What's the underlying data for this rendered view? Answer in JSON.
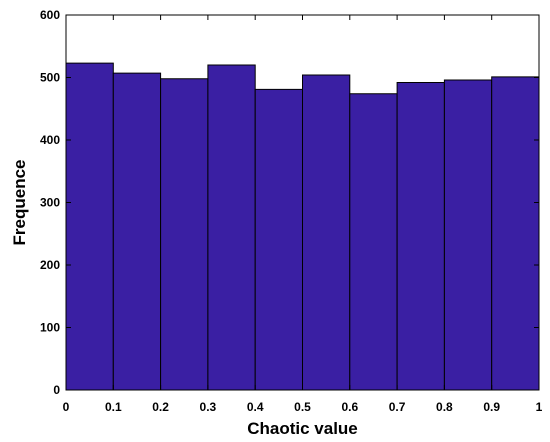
{
  "chart_data": {
    "type": "bar",
    "title": "",
    "xlabel": "Chaotic value",
    "ylabel": "Frequence",
    "xlim": [
      0,
      1
    ],
    "ylim": [
      0,
      600
    ],
    "x_ticks": [
      "0",
      "0.1",
      "0.2",
      "0.3",
      "0.4",
      "0.5",
      "0.6",
      "0.7",
      "0.8",
      "0.9",
      "1"
    ],
    "y_ticks": [
      "0",
      "100",
      "200",
      "300",
      "400",
      "500",
      "600"
    ],
    "bins": [
      {
        "start": 0.0,
        "end": 0.1,
        "value": 523
      },
      {
        "start": 0.1,
        "end": 0.2,
        "value": 507
      },
      {
        "start": 0.2,
        "end": 0.3,
        "value": 498
      },
      {
        "start": 0.3,
        "end": 0.4,
        "value": 520
      },
      {
        "start": 0.4,
        "end": 0.5,
        "value": 481
      },
      {
        "start": 0.5,
        "end": 0.6,
        "value": 504
      },
      {
        "start": 0.6,
        "end": 0.7,
        "value": 474
      },
      {
        "start": 0.7,
        "end": 0.8,
        "value": 492
      },
      {
        "start": 0.8,
        "end": 0.9,
        "value": 496
      },
      {
        "start": 0.9,
        "end": 1.0,
        "value": 501
      }
    ],
    "bar_color": "#3a1fa3",
    "grid": false,
    "legend": "none"
  }
}
